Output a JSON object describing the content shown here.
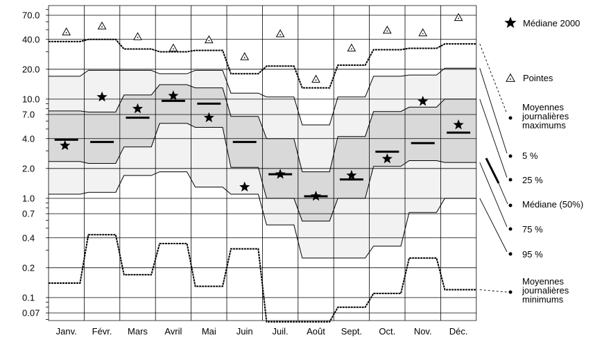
{
  "chart_data": {
    "type": "area",
    "yscale": "log",
    "ylim": [
      0.05,
      80
    ],
    "yticks": [
      {
        "value": 70,
        "label": "70.0"
      },
      {
        "value": 40,
        "label": "40.0"
      },
      {
        "value": 20,
        "label": "20.0"
      },
      {
        "value": 10,
        "label": "10.0"
      },
      {
        "value": 7,
        "label": "7.0"
      },
      {
        "value": 4,
        "label": "4.0"
      },
      {
        "value": 2,
        "label": "2.0"
      },
      {
        "value": 1,
        "label": "1.0"
      },
      {
        "value": 0.7,
        "label": "0.7"
      },
      {
        "value": 0.4,
        "label": "0.4"
      },
      {
        "value": 0.2,
        "label": "0.2"
      },
      {
        "value": 0.1,
        "label": "0.1"
      },
      {
        "value": 0.07,
        "label": "0.07"
      }
    ],
    "categories": [
      "Janv.",
      "Févr.",
      "Mars",
      "Avril",
      "Mai",
      "Juin",
      "Juil.",
      "Août",
      "Sept.",
      "Oct.",
      "Nov.",
      "Déc."
    ],
    "series": [
      {
        "name": "Moyennes journalières maximums",
        "values": [
          38,
          40,
          32,
          30,
          31,
          18,
          21.5,
          13,
          22,
          31.5,
          32.5,
          36
        ]
      },
      {
        "name": "5 %",
        "values": [
          17,
          19.5,
          19.5,
          18,
          19.5,
          11.5,
          10.5,
          5.5,
          10.5,
          17,
          17.5,
          20.5
        ]
      },
      {
        "name": "25 %",
        "values": [
          7.6,
          7.4,
          11,
          14,
          13,
          6.7,
          4,
          1.85,
          4.2,
          7.5,
          8.3,
          10
        ]
      },
      {
        "name": "Médiane (50%)",
        "values": [
          3.9,
          3.7,
          6.5,
          9.6,
          9,
          3.7,
          1.75,
          1.05,
          1.55,
          2.95,
          3.6,
          4.6
        ]
      },
      {
        "name": "75 %",
        "values": [
          2.35,
          2.25,
          3.3,
          5.7,
          5.2,
          2.05,
          1,
          0.59,
          1,
          2.1,
          2.4,
          2.3
        ]
      },
      {
        "name": "95 %",
        "values": [
          1.1,
          1.15,
          1.7,
          1.85,
          1.3,
          1.1,
          0.54,
          0.25,
          0.25,
          0.33,
          0.72,
          1.0
        ]
      },
      {
        "name": "Moyennes journalières minimums",
        "values": [
          0.14,
          0.43,
          0.17,
          0.35,
          0.13,
          0.31,
          0.057,
          0.057,
          0.08,
          0.11,
          0.25,
          0.12
        ]
      },
      {
        "name": "Médiane 2000",
        "values": [
          3.4,
          10.5,
          8,
          10.8,
          6.5,
          1.3,
          1.75,
          1.05,
          1.7,
          2.5,
          9.5,
          5.5
        ]
      },
      {
        "name": "Pointes",
        "values": [
          48,
          55,
          43,
          33,
          40,
          27,
          46,
          16,
          33,
          50,
          47,
          67
        ]
      }
    ],
    "legend": {
      "placement": "right",
      "mediane2000": "Médiane  2000",
      "pointes": "Pointes",
      "max_lines": [
        "Moyennes",
        "journalières",
        "maximums"
      ],
      "p5": "5 %",
      "p25": "25 %",
      "median": "Médiane (50%)",
      "p75": "75 %",
      "p95": "95 %",
      "min_lines": [
        "Moyennes",
        "journalières",
        "minimums"
      ]
    },
    "colors": {
      "outer_band": "#f2f2f2",
      "inner_band": "#d9d9d9",
      "lines": "#000000"
    },
    "grid": true
  }
}
